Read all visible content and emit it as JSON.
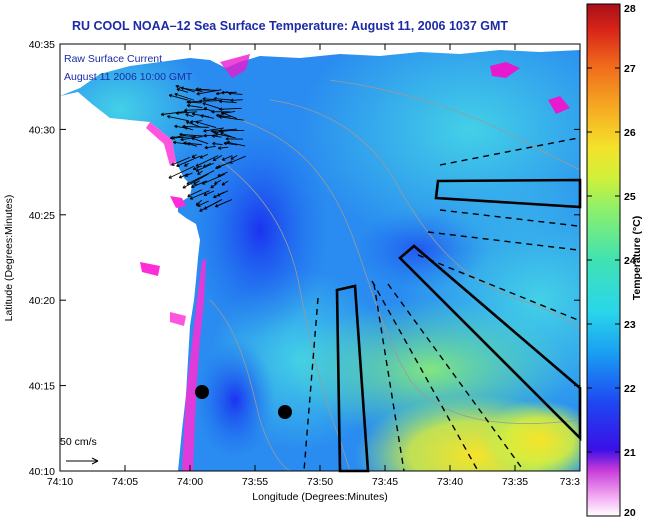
{
  "map": {
    "title": "RU COOL  NOAA–12  Sea Surface Temperature:  August 11, 2006 1037 GMT",
    "overlay_label_line1": "Raw Surface Current",
    "overlay_label_line2": "August 11 2006 10:00 GMT",
    "scale_label": "50 cm/s",
    "x_label": "Longitude (Degrees:Minutes)",
    "y_label": "Latitude (Degrees:Minutes)",
    "x_ticks": [
      "74:10",
      "74:05",
      "74:00",
      "73:55",
      "73:50",
      "73:45",
      "73:40",
      "73:35",
      "73:3"
    ],
    "y_ticks": [
      "40:35",
      "40:30",
      "40:25",
      "40:20",
      "40:15",
      "40:10"
    ],
    "colorbar_label": "Temperature (°C)",
    "colorbar_ticks": [
      "28",
      "27",
      "26",
      "25",
      "24",
      "23",
      "22",
      "21",
      "20"
    ],
    "colorbar_min": 20,
    "colorbar_max": 28,
    "colors": {
      "title": "#1c2aa8",
      "land": "#ffffff",
      "sst_warm": "#f4e62a",
      "sst_mid": "#3ad9e8",
      "sst_cool": "#1e3cf0",
      "nearshore": "#ff2bd6"
    }
  }
}
